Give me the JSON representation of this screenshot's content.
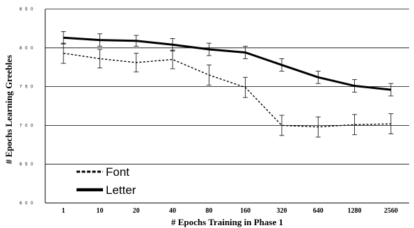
{
  "chart_data": {
    "type": "line",
    "title": "",
    "xlabel": "# Epochs Training in Phase 1",
    "ylabel": "# Epochs Learning Greebles",
    "categories": [
      "1",
      "10",
      "20",
      "40",
      "80",
      "160",
      "320",
      "640",
      "1280",
      "2560"
    ],
    "ylim": [
      600,
      850
    ],
    "yticks": [
      600,
      650,
      700,
      750,
      800,
      850
    ],
    "ytick_labels": [
      "6 0 0",
      "6 5 0",
      "7 0 0",
      "7 5 0",
      "8 0 0",
      "8 5 0"
    ],
    "grid": "horizontal",
    "legend": "bottom-left",
    "series": [
      {
        "name": "Font",
        "style": "dashed",
        "values": [
          793,
          786,
          781,
          785,
          765,
          749,
          700,
          698,
          701,
          702
        ],
        "error": [
          13,
          12,
          12,
          12,
          13,
          13,
          13,
          13,
          13,
          13
        ]
      },
      {
        "name": "Letter",
        "style": "solid",
        "values": [
          813,
          810,
          809,
          804,
          798,
          794,
          778,
          762,
          751,
          746
        ],
        "error": [
          8,
          8,
          7,
          8,
          8,
          8,
          8,
          8,
          8,
          8
        ]
      }
    ]
  }
}
